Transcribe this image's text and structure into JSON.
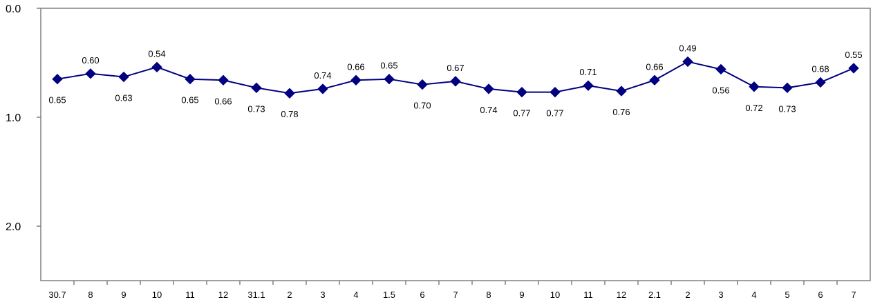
{
  "chart_data": {
    "type": "line",
    "title": "",
    "xlabel": "",
    "ylabel": "",
    "y_inverted": true,
    "ylim": [
      0.0,
      2.5
    ],
    "y_ticks": [
      {
        "value": 0.0,
        "label": "0.0"
      },
      {
        "value": 1.0,
        "label": "1.0"
      },
      {
        "value": 2.0,
        "label": "2.0"
      }
    ],
    "grid": false,
    "legend": "none",
    "categories": [
      "30.7",
      "8",
      "9",
      "10",
      "11",
      "12",
      "31.1",
      "2",
      "3",
      "4",
      "1.5",
      "6",
      "7",
      "8",
      "9",
      "10",
      "11",
      "12",
      "2.1",
      "2",
      "3",
      "4",
      "5",
      "6",
      "7"
    ],
    "series": [
      {
        "color": "#000080",
        "marker": "diamond",
        "values": [
          0.65,
          0.6,
          0.63,
          0.54,
          0.65,
          0.66,
          0.73,
          0.78,
          0.74,
          0.66,
          0.65,
          0.7,
          0.67,
          0.74,
          0.77,
          0.77,
          0.71,
          0.76,
          0.66,
          0.49,
          0.56,
          0.72,
          0.73,
          0.68,
          0.55
        ],
        "value_labels": [
          "0.65",
          "0.60",
          "0.63",
          "0.54",
          "0.65",
          "0.66",
          "0.73",
          "0.78",
          "0.74",
          "0.66",
          "0.65",
          "0.70",
          "0.67",
          "0.74",
          "0.77",
          "0.77",
          "0.71",
          "0.76",
          "0.66",
          "0.49",
          "0.56",
          "0.72",
          "0.73",
          "0.68",
          "0.55"
        ],
        "label_positions": [
          "below",
          "above",
          "below",
          "above",
          "below",
          "below",
          "below",
          "below",
          "above",
          "above",
          "above",
          "below",
          "above",
          "below",
          "below",
          "below",
          "above",
          "below",
          "above",
          "above",
          "below",
          "below",
          "below",
          "above",
          "above"
        ]
      }
    ]
  }
}
